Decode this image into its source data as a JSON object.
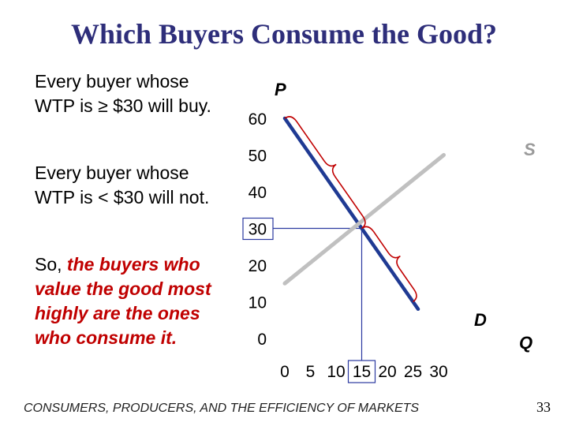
{
  "slide": {
    "title": "Which Buyers Consume the Good?",
    "para1": "Every buyer whose WTP is ≥ $30 will buy.",
    "para2": "Every buyer whose WTP is < $30 will not.",
    "para3_prefix": "So, ",
    "para3_emphasis": "the buyers who value the good most highly are the ones who consume it.",
    "footer": "CONSUMERS, PRODUCERS, AND THE EFFICIENCY OF MARKETS",
    "page_number": "33"
  },
  "chart_data": {
    "type": "line",
    "xlabel": "Q",
    "ylabel": "P",
    "x_ticks": [
      "0",
      "5",
      "10",
      "15",
      "20",
      "25",
      "30"
    ],
    "y_ticks": [
      "0",
      "10",
      "20",
      "30",
      "40",
      "50",
      "60"
    ],
    "xlim": [
      0,
      30
    ],
    "ylim": [
      0,
      60
    ],
    "highlighted_x_tick": "15",
    "highlighted_y_tick": "30",
    "series": [
      {
        "name": "D",
        "points": [
          [
            0,
            60
          ],
          [
            26,
            8
          ]
        ],
        "color": "#1f3a93"
      },
      {
        "name": "S",
        "points": [
          [
            0,
            15
          ],
          [
            31,
            50
          ]
        ],
        "color": "#c0c0c0"
      }
    ],
    "equilibrium": {
      "x": 15,
      "y": 30,
      "guide_color": "#2b3aa0"
    },
    "braces": [
      {
        "from": [
          0,
          60
        ],
        "to": [
          15,
          30
        ],
        "color": "#c00000"
      },
      {
        "from": [
          15,
          30
        ],
        "to": [
          25,
          10
        ],
        "color": "#c00000"
      }
    ],
    "colors": {
      "title": "#2e2e7a",
      "emphasis": "#c00000",
      "supply_label": "#9a9a9a"
    }
  }
}
